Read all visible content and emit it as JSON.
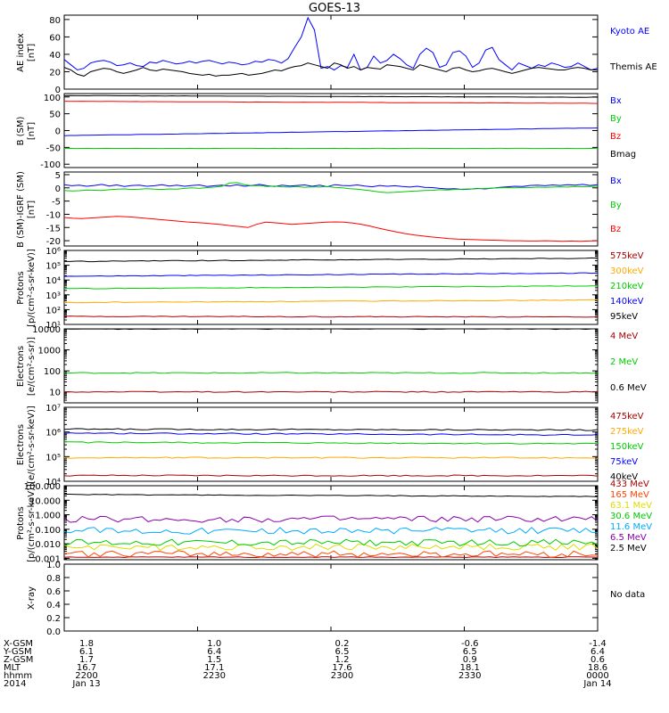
{
  "title": "GOES-13",
  "chart_data": [
    {
      "type": "line",
      "ylabel": [
        "AE index",
        "[nT]"
      ],
      "ylim": [
        0,
        85
      ],
      "ticks": [
        "0",
        "20",
        "40",
        "60",
        "80"
      ],
      "tick_values": [
        0,
        20,
        40,
        60,
        80
      ],
      "series": [
        {
          "name": "Kyoto AE",
          "color": "#0000ff",
          "values": [
            34,
            28,
            22,
            24,
            30,
            32,
            33,
            31,
            27,
            28,
            30,
            27,
            26,
            31,
            30,
            33,
            31,
            29,
            30,
            32,
            30,
            32,
            33,
            31,
            29,
            31,
            30,
            28,
            29,
            32,
            31,
            34,
            33,
            30,
            35,
            48,
            60,
            82,
            68,
            24,
            26,
            22,
            27,
            25,
            40,
            22,
            25,
            38,
            30,
            33,
            40,
            35,
            28,
            24,
            40,
            47,
            42,
            25,
            28,
            42,
            44,
            38,
            25,
            30,
            45,
            48,
            34,
            28,
            22,
            30,
            27,
            24,
            28,
            26,
            30,
            28,
            25,
            26,
            30,
            26,
            22,
            24
          ]
        },
        {
          "name": "Themis AE",
          "color": "#000000",
          "values": [
            25,
            22,
            17,
            15,
            20,
            22,
            24,
            23,
            20,
            18,
            20,
            22,
            25,
            22,
            21,
            23,
            22,
            21,
            20,
            18,
            17,
            16,
            17,
            15,
            16,
            16,
            17,
            18,
            16,
            17,
            18,
            20,
            22,
            21,
            24,
            26,
            27,
            30,
            28,
            26,
            24,
            30,
            28,
            24,
            26,
            22,
            25,
            24,
            23,
            28,
            27,
            26,
            24,
            22,
            28,
            26,
            24,
            22,
            20,
            24,
            25,
            22,
            20,
            21,
            23,
            24,
            22,
            20,
            18,
            20,
            22,
            24,
            25,
            24,
            23,
            22,
            22,
            24,
            25,
            24,
            22,
            22
          ]
        }
      ]
    },
    {
      "type": "line",
      "ylabel": [
        "B (SM)",
        "[nT]"
      ],
      "ylim": [
        -110,
        110
      ],
      "ticks": [
        "-100",
        "-50",
        "0",
        "50",
        "100"
      ],
      "tick_values": [
        -100,
        -50,
        0,
        50,
        100
      ],
      "series": [
        {
          "name": "Bx",
          "color": "#0000ff",
          "start": -15,
          "end": 8
        },
        {
          "name": "By",
          "color": "#00cc00",
          "start": -53,
          "end": -53
        },
        {
          "name": "Bz",
          "color": "#ff0000",
          "start": 87,
          "end": 81
        },
        {
          "name": "Bmag",
          "color": "#000000",
          "start": 104,
          "end": 99
        }
      ]
    },
    {
      "type": "line",
      "ylabel": [
        "B (SM)-IGRF (SM)",
        "[nT]"
      ],
      "ylim": [
        -22,
        6
      ],
      "ticks": [
        "-20",
        "-15",
        "-10",
        "-5",
        "0",
        "5"
      ],
      "tick_values": [
        -20,
        -15,
        -10,
        -5,
        0,
        5
      ],
      "series": [
        {
          "name": "Bx",
          "color": "#0000ff",
          "values": [
            1.2,
            0.8,
            1.0,
            0.6,
            0.9,
            1.3,
            0.7,
            1.1,
            0.5,
            0.9,
            1.0,
            0.6,
            0.8,
            1.2,
            0.7,
            1.0,
            0.6,
            0.9,
            1.1,
            0.5,
            0.8,
            1.0,
            0.7,
            1.2,
            0.6,
            0.9,
            1.3,
            0.8,
            0.5,
            1.0,
            0.7,
            0.9,
            1.1,
            0.6,
            1.0,
            0.4,
            1.2,
            0.9,
            0.8,
            1.1,
            0.7,
            0.4,
            0.9,
            0.6,
            0.8,
            0.5,
            0.3,
            0.6,
            0.2,
            0.1,
            -0.2,
            -0.4,
            -0.3,
            -0.6,
            -0.5,
            -0.2,
            -0.4,
            -0.1,
            0.2,
            0.4,
            0.6,
            0.5,
            0.9,
            1.0,
            0.8,
            1.1,
            0.9,
            1.2,
            1.0,
            1.3,
            0.9,
            1.2
          ]
        },
        {
          "name": "By",
          "color": "#00cc00",
          "values": [
            -1.0,
            -1.2,
            -1.1,
            -0.8,
            -0.9,
            -1.0,
            -0.7,
            -0.5,
            -0.4,
            -0.6,
            -0.5,
            -0.3,
            -0.5,
            -0.6,
            -0.4,
            -0.5,
            -0.2,
            0.0,
            -0.2,
            0.1,
            0.3,
            0.6,
            1.8,
            2.0,
            1.2,
            0.8,
            0.9,
            0.5,
            0.7,
            0.4,
            0.3,
            0.5,
            0.2,
            0.4,
            0.3,
            0.5,
            0.2,
            0.0,
            -0.3,
            -0.5,
            -0.8,
            -1.2,
            -1.6,
            -1.8,
            -1.7,
            -1.5,
            -1.3,
            -1.2,
            -1.0,
            -0.9,
            -0.7,
            -0.8,
            -0.6,
            -0.5,
            -0.4,
            -0.3,
            -0.2,
            -0.1,
            0.0,
            0.1,
            0.0,
            0.2,
            0.1,
            0.3,
            0.2,
            0.3,
            0.4,
            0.3,
            0.5,
            0.4,
            0.5,
            0.6
          ]
        },
        {
          "name": "Bz",
          "color": "#ff0000",
          "values": [
            -11.2,
            -11.5,
            -11.6,
            -11.4,
            -11.2,
            -11.0,
            -10.8,
            -10.9,
            -11.1,
            -11.4,
            -11.7,
            -12.0,
            -12.3,
            -12.6,
            -12.9,
            -13.1,
            -13.3,
            -13.6,
            -13.9,
            -14.3,
            -14.6,
            -15.0,
            -13.8,
            -13.0,
            -13.2,
            -13.5,
            -13.8,
            -13.6,
            -13.4,
            -13.2,
            -13.0,
            -12.9,
            -13.0,
            -13.3,
            -13.8,
            -14.5,
            -15.3,
            -16.0,
            -16.7,
            -17.3,
            -17.8,
            -18.2,
            -18.6,
            -18.9,
            -19.2,
            -19.4,
            -19.5,
            -19.6,
            -19.7,
            -19.8,
            -19.9,
            -20.0,
            -20.0,
            -20.1,
            -20.1,
            -20.0,
            -20.1,
            -20.2,
            -20.1,
            -20.2,
            -20.1,
            -20.0
          ]
        }
      ]
    },
    {
      "type": "line",
      "log": true,
      "ylabel": [
        "Protons",
        "[p/(cm²-s-sr-keV)]"
      ],
      "ylim": [
        10,
        1000000
      ],
      "ticks": [
        "10¹",
        "10²",
        "10³",
        "10⁴",
        "10⁵",
        "10⁶"
      ],
      "tick_values": [
        10,
        100,
        1000,
        10000,
        100000,
        1000000
      ],
      "series": [
        {
          "name": "575keV",
          "color": "#aa0000",
          "start": 35,
          "end": 32
        },
        {
          "name": "300keV",
          "color": "#ffaa00",
          "start": 300,
          "end": 450
        },
        {
          "name": "210keV",
          "color": "#00cc00",
          "start": 2600,
          "end": 4000
        },
        {
          "name": "140keV",
          "color": "#0000ff",
          "start": 18000,
          "end": 30000
        },
        {
          "name": "95keV",
          "color": "#000000",
          "start": 180000,
          "end": 300000
        }
      ]
    },
    {
      "type": "line",
      "log": true,
      "ylabel": [
        "Electrons",
        "[e/(cm²-s-sr)]"
      ],
      "ylim": [
        3,
        10000
      ],
      "ticks": [
        "10",
        "100",
        "1000",
        "10000"
      ],
      "tick_values": [
        10,
        100,
        1000,
        10000
      ],
      "series": [
        {
          "name": "4 MeV",
          "color": "#aa0000",
          "start": 10,
          "end": 10
        },
        {
          "name": "2 MeV",
          "color": "#00cc00",
          "start": 80,
          "end": 80
        },
        {
          "name": "0.6 MeV",
          "color": "#000000",
          "start": 10000,
          "end": 10000
        }
      ]
    },
    {
      "type": "line",
      "log": true,
      "ylabel": [
        "Electrons",
        "[e/(cm²-s-sr-keV)]"
      ],
      "ylim": [
        10000,
        10000000
      ],
      "ticks": [
        "10⁴",
        "10⁵",
        "10⁶",
        "10⁷"
      ],
      "tick_values": [
        10000,
        100000,
        1000000,
        10000000
      ],
      "series": [
        {
          "name": "475keV",
          "color": "#aa0000",
          "start": 17000,
          "end": 17000
        },
        {
          "name": "275keV",
          "color": "#ffaa00",
          "start": 90000,
          "end": 90000
        },
        {
          "name": "150keV",
          "color": "#00cc00",
          "start": 380000,
          "end": 330000
        },
        {
          "name": "75keV",
          "color": "#0000ff",
          "start": 900000,
          "end": 750000
        },
        {
          "name": "40keV",
          "color": "#000000",
          "start": 1300000,
          "end": 1200000
        }
      ]
    },
    {
      "type": "line",
      "log": true,
      "ylabel": [
        "Protons",
        "[p/(cm²-s-sr-keV)]"
      ],
      "ylim": [
        0.0008,
        100
      ],
      "ticks": [
        "0.001",
        "0.010",
        "0.100",
        "1.000",
        "10.000",
        "100.000"
      ],
      "tick_values": [
        0.001,
        0.01,
        0.1,
        1,
        10,
        100
      ],
      "series": [
        {
          "name": "433 MeV",
          "color": "#aa0000",
          "start": 0.0012,
          "end": 0.0012
        },
        {
          "name": "165 MeV",
          "color": "#ff4400",
          "start": 0.002,
          "end": 0.002
        },
        {
          "name": "63.1 MeV",
          "color": "#dddd00",
          "start": 0.006,
          "end": 0.006
        },
        {
          "name": "30.6 MeV",
          "color": "#00cc00",
          "start": 0.012,
          "end": 0.012
        },
        {
          "name": "11.6 MeV",
          "color": "#00aaff",
          "start": 0.08,
          "end": 0.08
        },
        {
          "name": "6.5 MeV",
          "color": "#8800aa",
          "start": 0.5,
          "end": 0.5
        },
        {
          "name": "2.5 MeV",
          "color": "#000000",
          "start": 25,
          "end": 18
        }
      ]
    },
    {
      "type": "line",
      "ylabel": [
        "X-ray"
      ],
      "ylim": [
        0,
        1
      ],
      "ticks": [
        "0.0",
        "0.2",
        "0.4",
        "0.6",
        "0.8",
        "1.0"
      ],
      "tick_values": [
        0,
        0.2,
        0.4,
        0.6,
        0.8,
        1.0
      ],
      "series": [],
      "note": "No data"
    }
  ],
  "x_axis": {
    "rows": [
      {
        "label": "X-GSM",
        "values": [
          "1.8",
          "1.0",
          "0.2",
          "-0.6",
          "-1.4"
        ]
      },
      {
        "label": "Y-GSM",
        "values": [
          "6.1",
          "6.4",
          "6.5",
          "6.5",
          "6.4"
        ]
      },
      {
        "label": "Z-GSM",
        "values": [
          "1.7",
          "1.5",
          "1.2",
          "0.9",
          "0.6"
        ]
      },
      {
        "label": "MLT",
        "values": [
          "16.7",
          "17.1",
          "17.6",
          "18.1",
          "18.6"
        ]
      },
      {
        "label": "hhmm",
        "values": [
          "2200",
          "2230",
          "2300",
          "2330",
          "0000"
        ]
      },
      {
        "label": "2014",
        "values": [
          "Jan 13",
          "",
          "",
          "",
          "Jan 14"
        ]
      }
    ]
  }
}
